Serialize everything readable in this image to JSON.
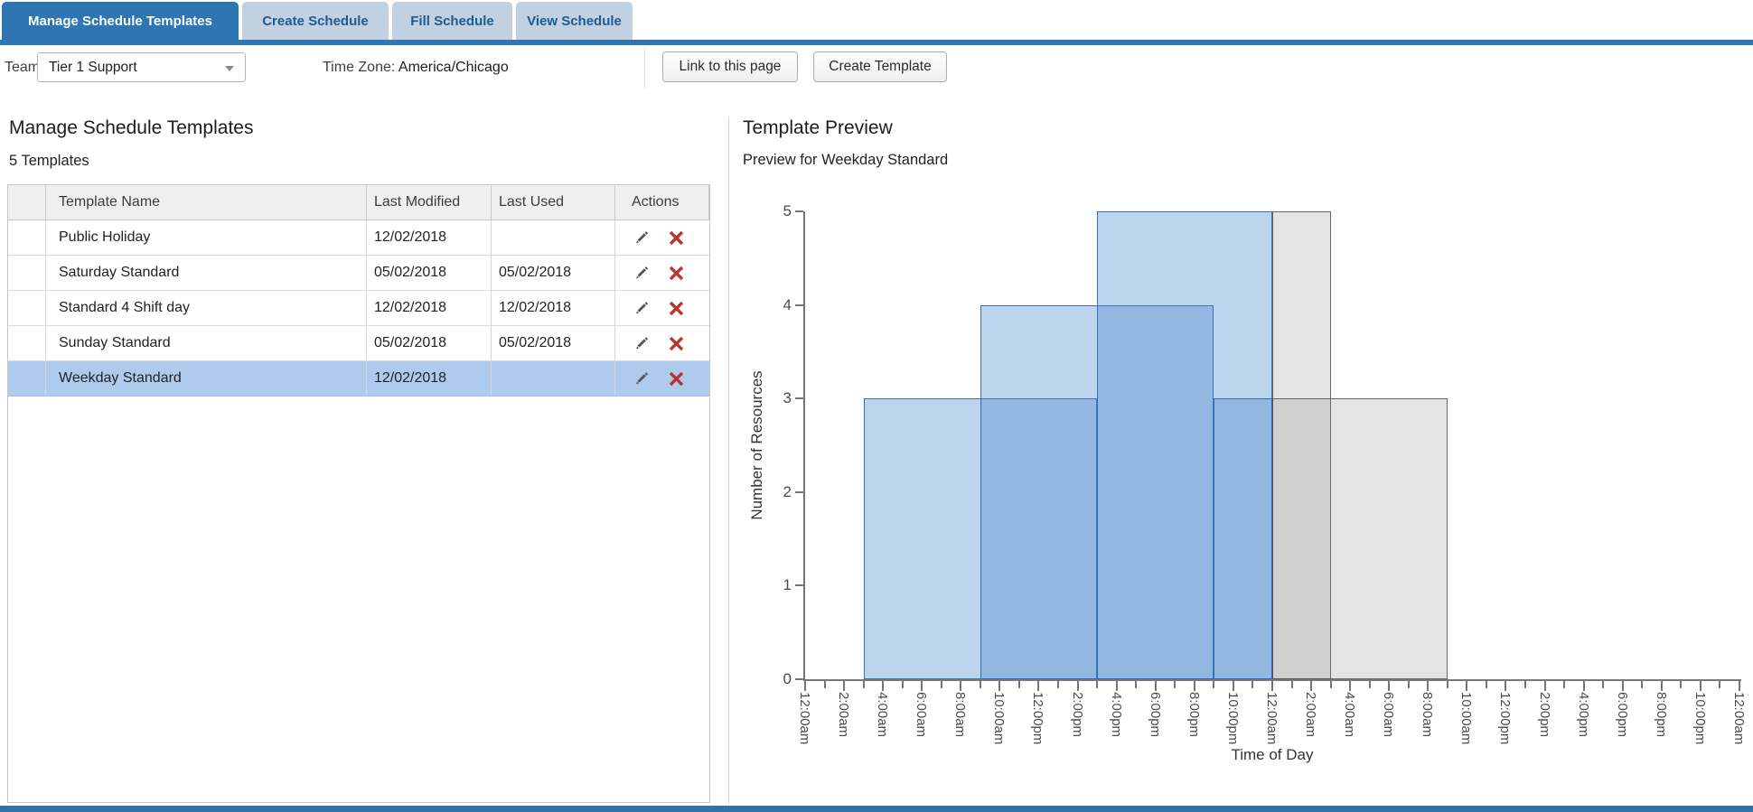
{
  "tabs": {
    "items": [
      {
        "label": "Manage Schedule Templates",
        "active": true
      },
      {
        "label": "Create Schedule",
        "active": false
      },
      {
        "label": "Fill Schedule",
        "active": false
      },
      {
        "label": "View Schedule",
        "active": false
      }
    ]
  },
  "toolbar": {
    "team_label": "Team:",
    "team_value": "Tier 1 Support",
    "timezone_label": "Time Zone:",
    "timezone_value": "America/Chicago",
    "link_button": "Link to this page",
    "create_button": "Create Template"
  },
  "templates_panel": {
    "title": "Manage Schedule Templates",
    "count_text": "5 Templates",
    "columns": [
      "",
      "Template Name",
      "Last Modified",
      "Last Used",
      "Actions"
    ],
    "rows": [
      {
        "name": "Public Holiday",
        "last_modified": "12/02/2018",
        "last_used": "",
        "selected": false
      },
      {
        "name": "Saturday Standard",
        "last_modified": "05/02/2018",
        "last_used": "05/02/2018",
        "selected": false
      },
      {
        "name": "Standard 4 Shift day",
        "last_modified": "12/02/2018",
        "last_used": "12/02/2018",
        "selected": false
      },
      {
        "name": "Sunday Standard",
        "last_modified": "05/02/2018",
        "last_used": "05/02/2018",
        "selected": false
      },
      {
        "name": "Weekday Standard",
        "last_modified": "12/02/2018",
        "last_used": "",
        "selected": true
      }
    ]
  },
  "preview_panel": {
    "title": "Template Preview",
    "subtitle": "Preview for Weekday Standard"
  },
  "chart_data": {
    "type": "bar",
    "title": "Preview for Weekday Standard",
    "xlabel": "Time of Day",
    "ylabel": "Number of Resources",
    "ylim": [
      0,
      5
    ],
    "y_ticks": [
      0,
      1,
      2,
      3,
      4,
      5
    ],
    "x_hours_total": 48,
    "x_tick_every_hours": 1,
    "x_label_every_hours": 2,
    "x_labels": [
      "12:00am",
      "2:00am",
      "4:00am",
      "6:00am",
      "8:00am",
      "10:00am",
      "12:00pm",
      "2:00pm",
      "4:00pm",
      "6:00pm",
      "8:00pm",
      "10:00pm",
      "12:00am",
      "2:00am",
      "4:00am",
      "6:00am",
      "8:00am",
      "10:00am",
      "12:00pm",
      "2:00pm",
      "4:00pm",
      "6:00pm",
      "8:00pm",
      "10:00pm",
      "12:00am"
    ],
    "grid": false,
    "legend": false,
    "shifts": [
      {
        "start_hour": 3,
        "end_hour": 15,
        "resources": 3,
        "style": "active"
      },
      {
        "start_hour": 9,
        "end_hour": 21,
        "resources": 4,
        "style": "active"
      },
      {
        "start_hour": 15,
        "end_hour": 24,
        "resources": 5,
        "style": "active"
      },
      {
        "start_hour": 21,
        "end_hour": 24,
        "resources": 3,
        "style": "active"
      },
      {
        "start_hour": 24,
        "end_hour": 27,
        "resources": 5,
        "style": "carryover"
      },
      {
        "start_hour": 24,
        "end_hour": 33,
        "resources": 3,
        "style": "carryover"
      }
    ]
  },
  "colors": {
    "accent_blue": "#2E75B4",
    "tab_inactive_bg": "#C1D1E1",
    "tab_inactive_text": "#1C5C94",
    "selected_row_bg": "#AECBEE",
    "bar_blue_fill": "rgba(66,133,203,0.35)",
    "bar_blue_border": "rgba(45,100,168,0.9)",
    "bar_gray_fill": "rgba(130,130,130,0.22)",
    "bar_gray_border": "rgba(80,80,80,0.85)",
    "delete_red": "#B7392E",
    "pencil_gray": "#555555"
  }
}
